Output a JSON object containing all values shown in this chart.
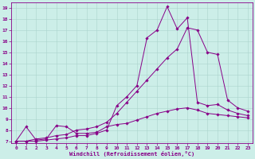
{
  "xlabel": "Windchill (Refroidissement éolien,°C)",
  "bg_color": "#cceee8",
  "line_color": "#880088",
  "grid_color": "#aad4cc",
  "xlim": [
    -0.5,
    23.5
  ],
  "ylim": [
    6.8,
    19.5
  ],
  "xticks": [
    0,
    1,
    2,
    3,
    4,
    5,
    6,
    7,
    8,
    9,
    10,
    11,
    12,
    13,
    14,
    15,
    16,
    17,
    18,
    19,
    20,
    21,
    22,
    23
  ],
  "yticks": [
    7,
    8,
    9,
    10,
    11,
    12,
    13,
    14,
    15,
    16,
    17,
    18,
    19
  ],
  "series1_x": [
    0,
    1,
    2,
    3,
    4,
    5,
    6,
    7,
    8,
    9,
    10,
    11,
    12,
    13,
    14,
    15,
    16,
    17,
    18,
    19,
    20,
    21,
    22,
    23
  ],
  "series1_y": [
    7.0,
    8.3,
    7.1,
    7.2,
    8.4,
    8.3,
    7.7,
    7.7,
    7.8,
    8.3,
    8.5,
    8.6,
    8.9,
    9.2,
    9.5,
    9.7,
    9.9,
    10.0,
    9.8,
    9.5,
    9.4,
    9.3,
    9.2,
    9.1
  ],
  "series2_x": [
    0,
    1,
    2,
    3,
    4,
    5,
    6,
    7,
    8,
    9,
    10,
    11,
    12,
    13,
    14,
    15,
    16,
    17,
    18,
    19,
    20,
    21,
    22,
    23
  ],
  "series2_y": [
    7.0,
    7.0,
    7.2,
    7.3,
    7.5,
    7.6,
    8.0,
    8.1,
    8.3,
    8.7,
    9.5,
    10.5,
    11.5,
    12.5,
    13.5,
    14.5,
    15.3,
    17.2,
    17.0,
    15.0,
    14.8,
    10.7,
    10.0,
    9.7
  ],
  "series3_x": [
    0,
    1,
    2,
    3,
    4,
    5,
    6,
    7,
    8,
    9,
    10,
    11,
    12,
    13,
    14,
    15,
    16,
    17,
    18,
    19,
    20,
    21,
    22,
    23
  ],
  "series3_y": [
    7.0,
    7.0,
    7.0,
    7.1,
    7.2,
    7.3,
    7.5,
    7.5,
    7.7,
    8.0,
    10.2,
    11.0,
    12.0,
    16.3,
    17.0,
    19.1,
    17.1,
    18.1,
    10.5,
    10.2,
    10.3,
    9.8,
    9.5,
    9.3
  ]
}
